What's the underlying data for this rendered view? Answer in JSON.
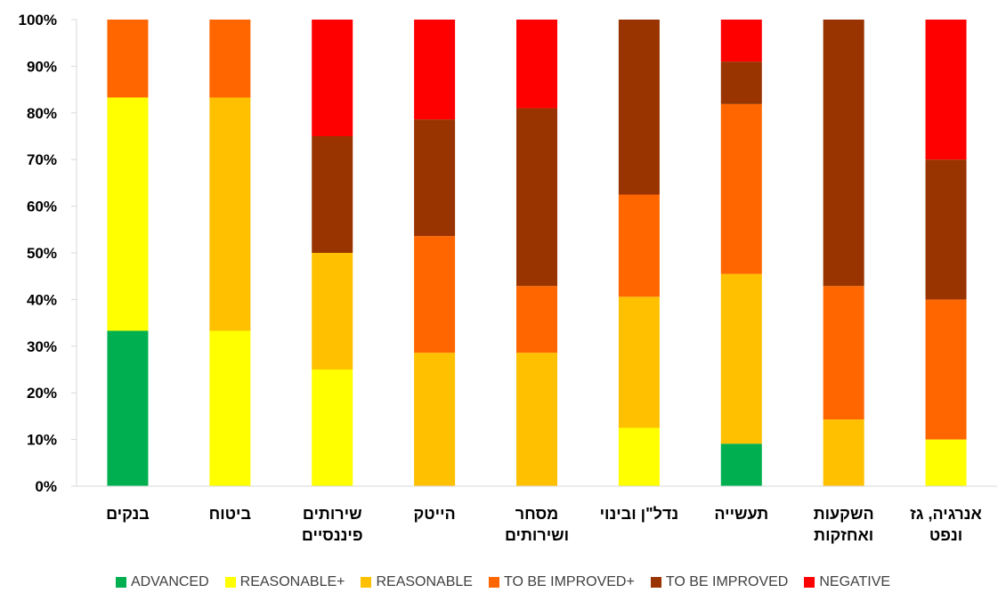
{
  "chart_data": {
    "type": "bar",
    "stacked": true,
    "percent_stacked": true,
    "ylim": [
      0,
      100
    ],
    "y_ticks": [
      "0%",
      "10%",
      "20%",
      "30%",
      "40%",
      "50%",
      "60%",
      "70%",
      "80%",
      "90%",
      "100%"
    ],
    "grid": false,
    "legend_position": "bottom",
    "categories": [
      [
        "בנקים"
      ],
      [
        "ביטוח"
      ],
      [
        "שירותים",
        "פיננסיים"
      ],
      [
        "הייטק"
      ],
      [
        "מסחר",
        "ושירותים"
      ],
      [
        "נדל\"ן ובינוי"
      ],
      [
        "תעשייה"
      ],
      [
        "השקעות",
        "ואחזקות"
      ],
      [
        "אנרגיה, גז",
        "ונפט"
      ]
    ],
    "series": [
      {
        "name": "ADVANCED",
        "color": "#00B050",
        "values": [
          33.3,
          0,
          0,
          0,
          0,
          0,
          9.1,
          0,
          0
        ]
      },
      {
        "name": "REASONABLE+",
        "color": "#FFFF00",
        "values": [
          50.0,
          33.3,
          25.0,
          0,
          0,
          12.5,
          0,
          0,
          10.0
        ]
      },
      {
        "name": "REASONABLE",
        "color": "#FFC000",
        "values": [
          0,
          50.0,
          25.0,
          28.6,
          28.6,
          28.1,
          36.4,
          14.3,
          0
        ]
      },
      {
        "name": "TO BE IMPROVED+",
        "color": "#FF6600",
        "values": [
          16.7,
          16.7,
          0,
          25.0,
          14.3,
          21.9,
          36.4,
          28.6,
          30.0
        ]
      },
      {
        "name": "TO BE IMPROVED",
        "color": "#993300",
        "values": [
          0,
          0,
          25.0,
          25.0,
          38.1,
          37.5,
          9.1,
          57.1,
          30.0
        ]
      },
      {
        "name": "NEGATIVE",
        "color": "#FF0000",
        "values": [
          0,
          0,
          25.0,
          21.4,
          19.0,
          0,
          9.0,
          0,
          30.0
        ]
      }
    ]
  }
}
